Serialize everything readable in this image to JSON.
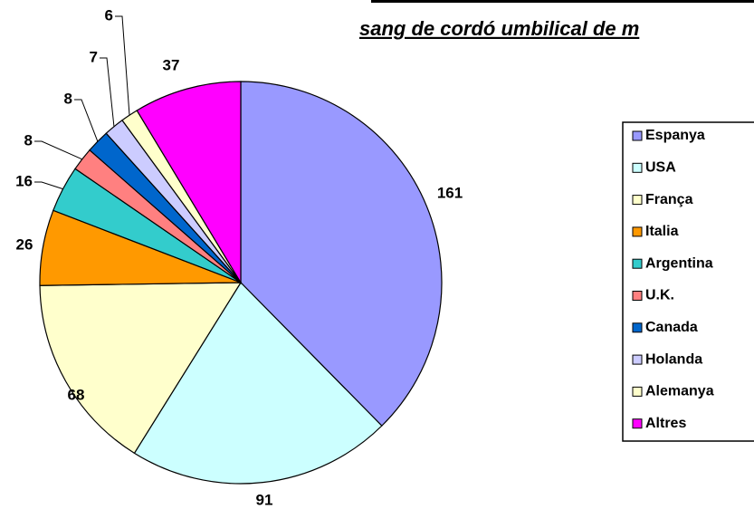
{
  "chart_data": {
    "type": "pie",
    "title": "sang de cordó umbilical de m",
    "categories": [
      "Espanya",
      "USA",
      "França",
      "Italia",
      "Argentina",
      "U.K.",
      "Canada",
      "Holanda",
      "Alemanya",
      "Altres"
    ],
    "values": [
      161,
      91,
      68,
      26,
      16,
      8,
      8,
      7,
      6,
      37
    ],
    "colors": [
      "#9999ff",
      "#ccffff",
      "#ffffcc",
      "#ff9900",
      "#33cccc",
      "#ff8080",
      "#0066cc",
      "#ccccff",
      "#ffffcc",
      "#ff00ff"
    ],
    "legend": "right"
  }
}
